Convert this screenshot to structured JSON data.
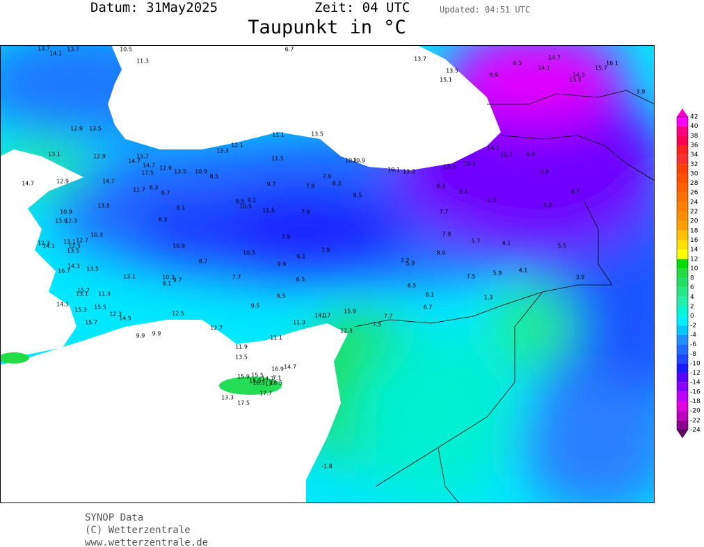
{
  "header": {
    "date": "Datum: 31May2025",
    "time": "Zeit: 04 UTC",
    "updated": "Updated: 04:51 UTC",
    "title": "Taupunkt in °C"
  },
  "colorbar": {
    "labels": [
      42,
      40,
      38,
      36,
      34,
      32,
      30,
      28,
      26,
      24,
      22,
      20,
      18,
      16,
      14,
      12,
      10,
      8,
      6,
      4,
      2,
      0,
      -2,
      -4,
      -6,
      -8,
      -10,
      -12,
      -14,
      -16,
      -18,
      -20,
      -22,
      -24
    ]
  },
  "stations": [
    "13.7",
    "13.7",
    "14.1",
    "10.5",
    "11.3",
    "6.7",
    "13.7",
    "13.5",
    "15.1",
    "8.9",
    "6.5",
    "14.7",
    "14.1",
    "14.3",
    "13.5",
    "15.7",
    "16.1",
    "3.9",
    "12.9",
    "13.5",
    "13.1",
    "12.9",
    "15.7",
    "14.7",
    "14.7",
    "12.9",
    "17.5",
    "13.5",
    "10.9",
    "8.5",
    "11.1",
    "13.5",
    "13.3",
    "12.1",
    "11.5",
    "10.1",
    "10.9",
    "10.1",
    "13.3",
    "13.3",
    "13.3",
    "14.1",
    "11.7",
    "4.9",
    "2.9",
    "14.7",
    "12.9",
    "14.7",
    "11.7",
    "8.3",
    "9.7",
    "9.7",
    "7.9",
    "7.9",
    "8.3",
    "8.5",
    "8.3",
    "5.3",
    "2.5",
    "9.7",
    "4.9",
    "10.9",
    "13.9",
    "12.3",
    "13.5",
    "8.1",
    "8.3",
    "8.5",
    "9.1",
    "10.5",
    "11.5",
    "7.9",
    "7.7",
    "10.3",
    "12.7",
    "13.1",
    "12.5",
    "12.3",
    "14.1",
    "13.5",
    "10.9",
    "7.9",
    "7.9",
    "5.7",
    "4.1",
    "5.5",
    "10.5",
    "6.1",
    "7.9",
    "8.9",
    "14.3",
    "16.7",
    "13.5",
    "8.7",
    "9.9",
    "7.7",
    "5.9",
    "13.1",
    "10.3",
    "8.1",
    "9.7",
    "7.7",
    "6.5",
    "7.5",
    "5.9",
    "4.1",
    "3.9",
    "6.5",
    "15.7",
    "13.1",
    "11.3",
    "14.1",
    "8.5",
    "6.1",
    "1.3",
    "15.3",
    "15.5",
    "9.5",
    "6.7",
    "12.3",
    "14.5",
    "12.5",
    "15.9",
    "14.1",
    "1.7",
    "7.7",
    "15.7",
    "11.3",
    "7.5",
    "12.7",
    "12.3",
    "9.9",
    "9.9",
    "11.1",
    "11.9",
    "13.5",
    "16.9",
    "14.7",
    "15.9",
    "15.5",
    "15.5",
    "14.7",
    "7.1",
    "16.3",
    "13",
    "18.5",
    "17.7",
    "13.3",
    "17.5",
    "-1.8"
  ],
  "footer": {
    "line1": "SYNOP Data",
    "line2": "(C) Wetterzentrale",
    "line3": "www.wetterzentrale.de"
  }
}
